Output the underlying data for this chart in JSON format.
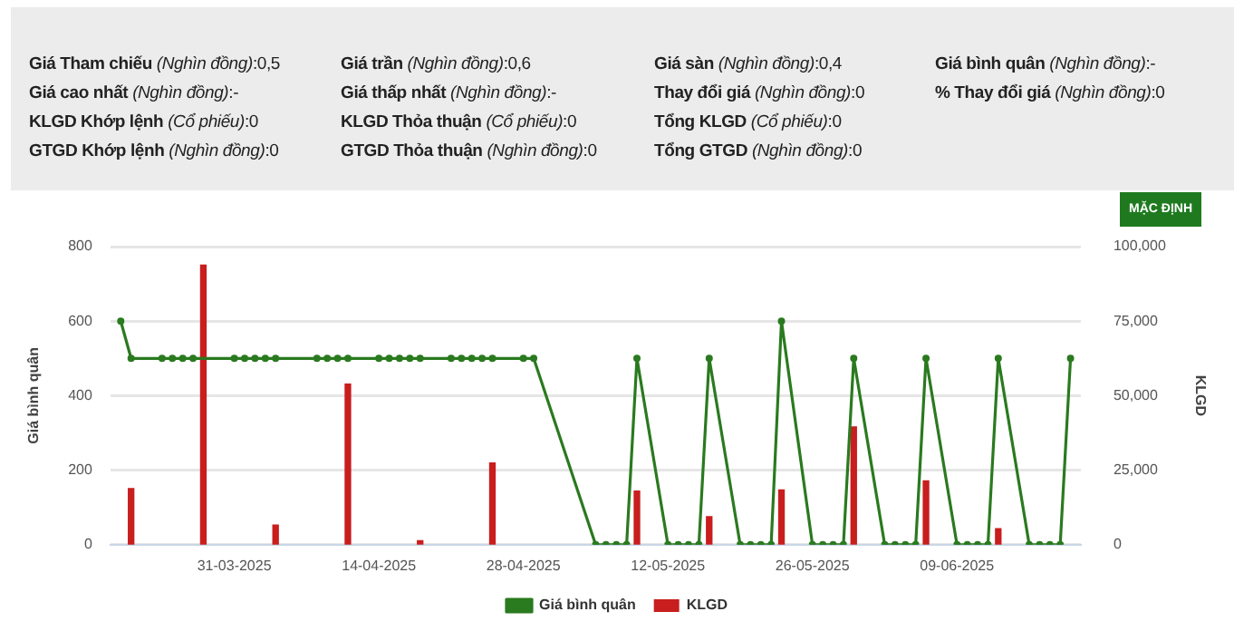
{
  "chart_data": {
    "type": "line",
    "annotations": [
      "Giá Tham chiếu (Nghìn đồng):0,5",
      "Giá cao nhất (Nghìn đồng):-",
      "KLGD Khớp lệnh (Cổ phiếu):0",
      "GTGD Khớp lệnh (Nghìn đồng):0",
      "Giá trần (Nghìn đồng):0,6",
      "Giá thấp nhất (Nghìn đồng):-",
      "KLGD Thỏa thuận (Cổ phiếu):0",
      "GTGD Thỏa thuận (Nghìn đồng):0",
      "Giá sàn (Nghìn đồng):0,4",
      "Thay đổi giá (Nghìn đồng):0",
      "Tổng KLGD (Cổ phiếu):0",
      "Tổng GTGD (Nghìn đồng):0",
      "Giá bình quân (Nghìn đồng):-",
      "% Thay đổi giá (Nghìn đồng):0",
      "MẶC ĐỊNH"
    ],
    "ylabel": "Giá bình quân",
    "y2label": "KLGD",
    "xlim": [
      "2025-03-19",
      "2025-06-21"
    ],
    "xticks": [
      {
        "value": "2025-03-31",
        "label": "31-03-2025"
      },
      {
        "value": "2025-04-14",
        "label": "14-04-2025"
      },
      {
        "value": "2025-04-28",
        "label": "28-04-2025"
      },
      {
        "value": "2025-05-12",
        "label": "12-05-2025"
      },
      {
        "value": "2025-05-26",
        "label": "26-05-2025"
      },
      {
        "value": "2025-06-09",
        "label": "09-06-2025"
      }
    ],
    "ylim": [
      0,
      800
    ],
    "yticks": [
      0,
      200,
      400,
      600,
      800
    ],
    "y2lim": [
      0,
      100000
    ],
    "y2ticks": [
      0,
      {
        "value": 25000,
        "label": "25,000"
      },
      {
        "value": 50000,
        "label": "50,000"
      },
      {
        "value": 75000,
        "label": "75,000"
      },
      {
        "value": 100000,
        "label": "100,000"
      }
    ],
    "grid": "y",
    "legend": "bottom",
    "marker": "circle",
    "line_style": "solid",
    "series": [
      {
        "name": "Giá bình quân",
        "color": "#2a7a1f",
        "x": [
          "2025-03-20",
          "2025-03-21",
          "2025-03-24",
          "2025-03-25",
          "2025-03-26",
          "2025-03-27",
          "2025-03-31",
          "2025-04-01",
          "2025-04-02",
          "2025-04-03",
          "2025-04-04",
          "2025-04-08",
          "2025-04-09",
          "2025-04-10",
          "2025-04-11",
          "2025-04-14",
          "2025-04-15",
          "2025-04-16",
          "2025-04-17",
          "2025-04-18",
          "2025-04-21",
          "2025-04-22",
          "2025-04-23",
          "2025-04-24",
          "2025-04-25",
          "2025-04-28",
          "2025-04-29",
          "2025-05-05",
          "2025-05-06",
          "2025-05-07",
          "2025-05-08",
          "2025-05-09",
          "2025-05-12",
          "2025-05-13",
          "2025-05-14",
          "2025-05-15",
          "2025-05-16",
          "2025-05-19",
          "2025-05-20",
          "2025-05-21",
          "2025-05-22",
          "2025-05-23",
          "2025-05-26",
          "2025-05-27",
          "2025-05-28",
          "2025-05-29",
          "2025-05-30",
          "2025-06-02",
          "2025-06-03",
          "2025-06-04",
          "2025-06-05",
          "2025-06-06",
          "2025-06-09",
          "2025-06-10",
          "2025-06-11",
          "2025-06-12",
          "2025-06-13",
          "2025-06-16",
          "2025-06-17",
          "2025-06-18",
          "2025-06-19",
          "2025-06-20"
        ],
        "values": [
          600,
          500,
          500,
          500,
          500,
          500,
          500,
          500,
          500,
          500,
          500,
          500,
          500,
          500,
          500,
          500,
          500,
          500,
          500,
          500,
          500,
          500,
          500,
          500,
          500,
          500,
          500,
          0,
          0,
          0,
          0,
          500,
          0,
          0,
          0,
          0,
          500,
          0,
          0,
          0,
          0,
          600,
          0,
          0,
          0,
          0,
          500,
          0,
          0,
          0,
          0,
          500,
          0,
          0,
          0,
          0,
          500,
          0,
          0,
          0,
          0,
          500
        ]
      },
      {
        "name": "KLGD",
        "type": "bar",
        "axis": "y2",
        "color": "#c81e1e",
        "x": [
          "2025-03-21",
          "2025-03-28",
          "2025-04-04",
          "2025-04-11",
          "2025-04-18",
          "2025-04-25",
          "2025-05-09",
          "2025-05-16",
          "2025-05-23",
          "2025-05-30",
          "2025-06-06",
          "2025-06-13"
        ],
        "values": [
          18800,
          93800,
          6600,
          53900,
          1300,
          27400,
          18000,
          9400,
          18400,
          39500,
          21400,
          5400
        ]
      }
    ]
  }
}
